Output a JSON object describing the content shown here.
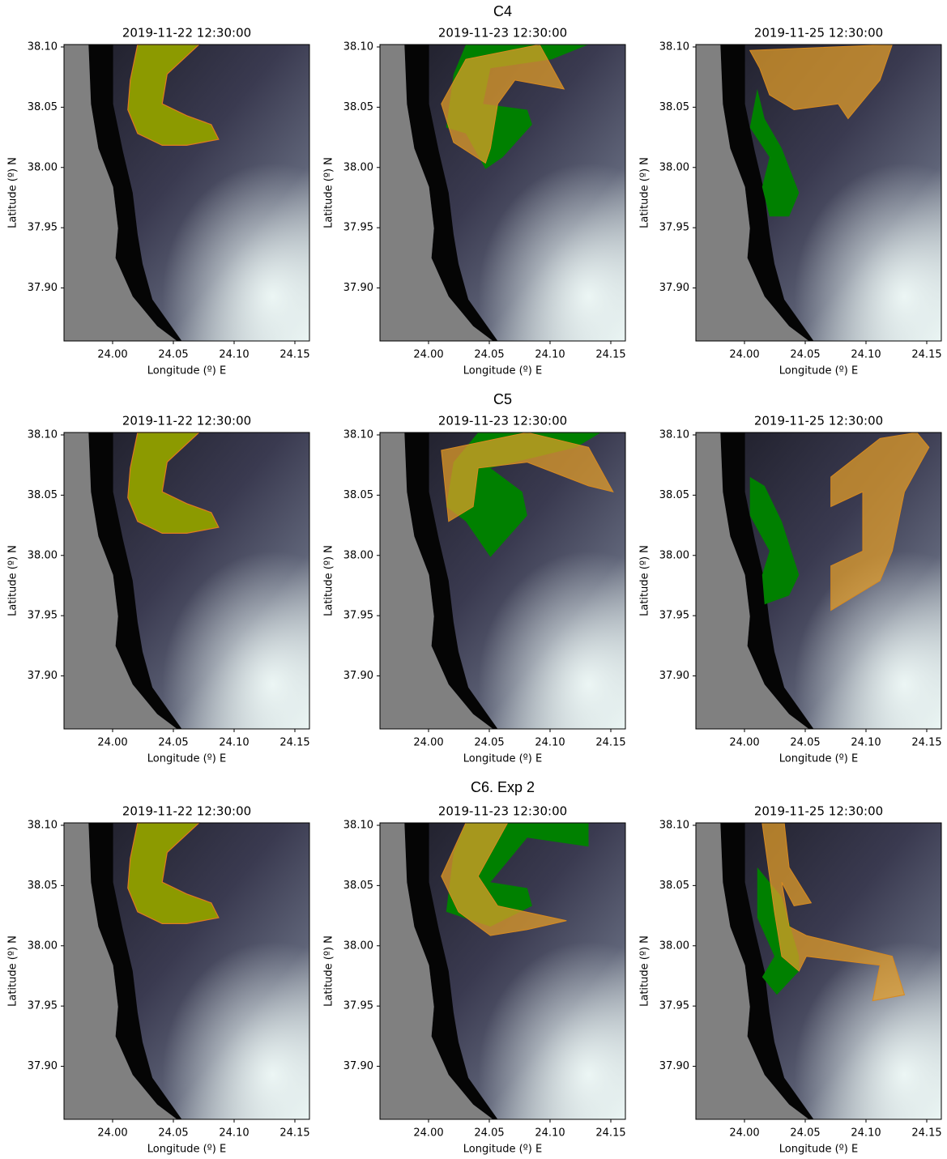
{
  "figure": {
    "xlabel": "Longitude (º) E",
    "ylabel": "Latitude (º) N",
    "xlim": [
      23.96,
      24.162
    ],
    "ylim": [
      37.856,
      38.102
    ],
    "xticks": [
      {
        "value": 24.0,
        "label": "24.00"
      },
      24.05,
      {
        "value": 24.1,
        "label": "24.10"
      },
      24.15
    ],
    "yticks": [
      {
        "value": 38.1,
        "label": "38.10"
      },
      38.05,
      {
        "value": 38.0,
        "label": "38.00"
      },
      37.95,
      {
        "value": 37.9,
        "label": "37.90"
      }
    ],
    "rows": [
      {
        "title": "C4",
        "panels": [
          "2019-11-22 12:30:00",
          "2019-11-23 12:30:00",
          "2019-11-25 12:30:00"
        ]
      },
      {
        "title": "C5",
        "panels": [
          "2019-11-22 12:30:00",
          "2019-11-23 12:30:00",
          "2019-11-25 12:30:00"
        ]
      },
      {
        "title": "C6. Exp 2",
        "panels": [
          "2019-11-22 12:30:00",
          "2019-11-23 12:30:00",
          "2019-11-25 12:30:00"
        ]
      }
    ]
  }
}
